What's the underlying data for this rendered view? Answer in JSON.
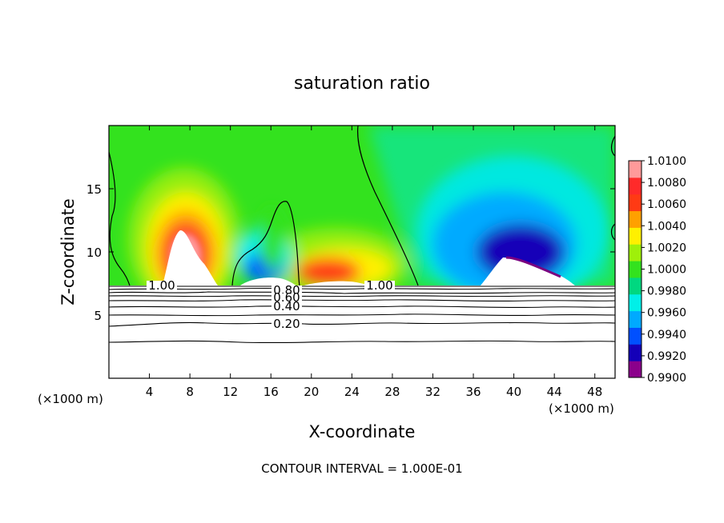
{
  "chart_data": {
    "type": "heatmap",
    "title": "saturation ratio",
    "xlabel": "X-coordinate",
    "ylabel": "Z-coordinate",
    "x_unit": "(×1000 m)",
    "y_unit": "(×1000 m)",
    "xlim": [
      0,
      50
    ],
    "ylim": [
      0,
      20
    ],
    "x_ticks": [
      4,
      8,
      12,
      16,
      20,
      24,
      28,
      32,
      36,
      40,
      44,
      48
    ],
    "y_ticks": [
      5,
      10,
      15
    ],
    "colorbar": {
      "min": 0.99,
      "max": 1.01,
      "tick_labels": [
        "1.0100",
        "1.0080",
        "1.0060",
        "1.0040",
        "1.0020",
        "1.0000",
        "0.9980",
        "0.9960",
        "0.9940",
        "0.9920",
        "0.9900"
      ],
      "colors": [
        "#8b008b",
        "#1400b8",
        "#0050ff",
        "#00aaff",
        "#00f0e8",
        "#00d880",
        "#33e21e",
        "#9ff00a",
        "#fff000",
        "#ffa000",
        "#ff3a14",
        "#ff2a2a",
        "#ff9a9a"
      ]
    },
    "contour_labels": [
      {
        "text": "1.00",
        "x": 4.2,
        "y": 7.0
      },
      {
        "text": "1.00",
        "x": 26.0,
        "y": 7.0
      },
      {
        "text": "0.80",
        "x": 17.5,
        "y": 6.8
      },
      {
        "text": "0.60",
        "x": 17.5,
        "y": 6.2
      },
      {
        "text": "0.40",
        "x": 17.5,
        "y": 5.5
      },
      {
        "text": "0.20",
        "x": 17.5,
        "y": 4.2
      }
    ],
    "contour_interval_note": "CONTOUR INTERVAL = 1.000E-01"
  }
}
